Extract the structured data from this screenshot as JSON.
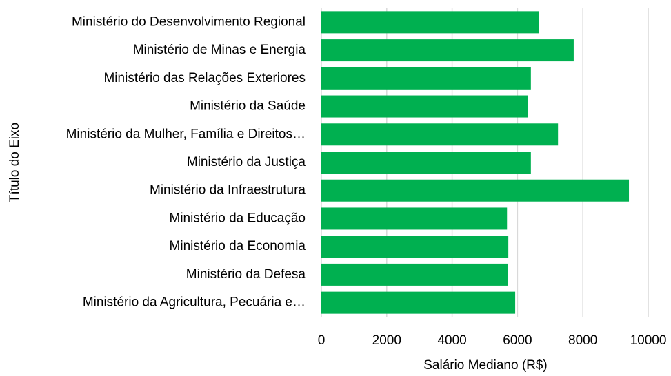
{
  "chart_data": {
    "type": "barh",
    "categories": [
      "Ministério do Desenvolvimento Regional",
      "Ministério de Minas e Energia",
      "Ministério das Relações Exteriores",
      "Ministério da Saúde",
      "Ministério da Mulher, Família e Direitos…",
      "Ministério da Justiça",
      "Ministério da Infraestrutura",
      "Ministério da Educação",
      "Ministério da Economia",
      "Ministério da Defesa",
      "Ministério da Agricultura, Pecuária e…"
    ],
    "values": [
      6650,
      7720,
      6410,
      6310,
      7240,
      6410,
      9410,
      5680,
      5720,
      5700,
      5930
    ],
    "color": "#00b050",
    "xlabel": "Salário Mediano (R$)",
    "ylabel": "Título do Eixo",
    "xlim": [
      0,
      10000
    ],
    "xticks": [
      0,
      2000,
      4000,
      6000,
      8000,
      10000
    ],
    "grid": true
  }
}
